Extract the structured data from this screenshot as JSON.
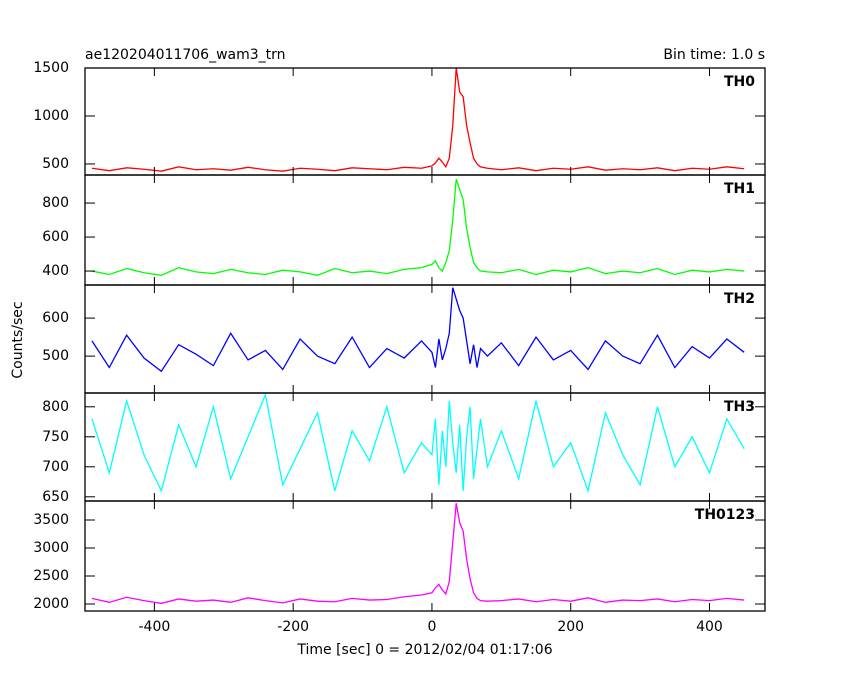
{
  "chart_data": [
    {
      "type": "line",
      "title": "ae120204011706_wam3_trn",
      "subtitle": "Bin time: 1.0 s",
      "x": [
        -490,
        -465,
        -440,
        -415,
        -390,
        -365,
        -340,
        -315,
        -290,
        -265,
        -240,
        -215,
        -190,
        -165,
        -140,
        -115,
        -90,
        -65,
        -40,
        -15,
        0,
        5,
        10,
        15,
        20,
        25,
        30,
        35,
        40,
        45,
        50,
        55,
        60,
        65,
        70,
        80,
        100,
        125,
        150,
        175,
        200,
        225,
        250,
        275,
        300,
        325,
        350,
        375,
        400,
        425,
        450
      ],
      "series": [
        {
          "name": "TH0",
          "color": "#ff0000",
          "values": [
            455,
            430,
            460,
            445,
            425,
            470,
            440,
            450,
            435,
            465,
            440,
            425,
            455,
            445,
            430,
            460,
            450,
            440,
            465,
            455,
            480,
            510,
            560,
            520,
            470,
            560,
            900,
            1500,
            1250,
            1200,
            900,
            720,
            560,
            500,
            470,
            455,
            440,
            460,
            430,
            455,
            445,
            470,
            435,
            450,
            440,
            460,
            430,
            455,
            445,
            470,
            450
          ]
        }
      ],
      "xlim": [
        -500,
        480
      ],
      "xticks": [
        -400,
        -200,
        0,
        200,
        400
      ],
      "ylim": [
        385,
        1500
      ],
      "yticks": [
        500,
        1000,
        1500
      ]
    },
    {
      "type": "line",
      "x": [
        -490,
        -465,
        -440,
        -415,
        -390,
        -365,
        -340,
        -315,
        -290,
        -265,
        -240,
        -215,
        -190,
        -165,
        -140,
        -115,
        -90,
        -65,
        -40,
        -15,
        0,
        5,
        10,
        15,
        20,
        25,
        30,
        35,
        40,
        45,
        50,
        55,
        60,
        65,
        70,
        80,
        100,
        125,
        150,
        175,
        200,
        225,
        250,
        275,
        300,
        325,
        350,
        375,
        400,
        425,
        450
      ],
      "series": [
        {
          "name": "TH1",
          "color": "#00ff00",
          "values": [
            400,
            380,
            415,
            390,
            375,
            420,
            395,
            385,
            410,
            390,
            380,
            405,
            395,
            375,
            415,
            390,
            400,
            385,
            410,
            420,
            440,
            460,
            420,
            400,
            450,
            520,
            700,
            940,
            880,
            820,
            650,
            540,
            450,
            420,
            400,
            395,
            390,
            410,
            380,
            405,
            395,
            420,
            385,
            400,
            390,
            415,
            380,
            405,
            395,
            410,
            400
          ]
        }
      ],
      "xlim": [
        -500,
        480
      ],
      "xticks": [
        -400,
        -200,
        0,
        200,
        400
      ],
      "ylim": [
        318,
        965
      ],
      "yticks": [
        400,
        600,
        800
      ]
    },
    {
      "type": "line",
      "y_label": "Counts/sec",
      "x": [
        -490,
        -465,
        -440,
        -415,
        -390,
        -365,
        -340,
        -315,
        -290,
        -265,
        -240,
        -215,
        -190,
        -165,
        -140,
        -115,
        -90,
        -65,
        -40,
        -15,
        0,
        5,
        10,
        15,
        20,
        25,
        30,
        35,
        40,
        45,
        50,
        55,
        60,
        65,
        70,
        80,
        100,
        125,
        150,
        175,
        200,
        225,
        250,
        275,
        300,
        325,
        350,
        375,
        400,
        425,
        450
      ],
      "series": [
        {
          "name": "TH2",
          "color": "#0000ff",
          "values": [
            540,
            470,
            555,
            495,
            460,
            530,
            505,
            475,
            560,
            490,
            515,
            465,
            545,
            500,
            480,
            550,
            470,
            520,
            495,
            540,
            510,
            470,
            545,
            490,
            520,
            560,
            680,
            650,
            620,
            600,
            540,
            480,
            530,
            470,
            520,
            500,
            535,
            475,
            550,
            490,
            515,
            465,
            540,
            500,
            480,
            555,
            470,
            525,
            495,
            545,
            510
          ]
        }
      ],
      "xlim": [
        -500,
        480
      ],
      "xticks": [
        -400,
        -200,
        0,
        200,
        400
      ],
      "ylim": [
        403,
        687
      ],
      "yticks": [
        500,
        600
      ]
    },
    {
      "type": "line",
      "x": [
        -490,
        -465,
        -440,
        -415,
        -390,
        -365,
        -340,
        -315,
        -290,
        -265,
        -240,
        -215,
        -190,
        -165,
        -140,
        -115,
        -90,
        -65,
        -40,
        -15,
        0,
        5,
        10,
        15,
        20,
        25,
        30,
        35,
        40,
        45,
        50,
        55,
        60,
        65,
        70,
        80,
        100,
        125,
        150,
        175,
        200,
        225,
        250,
        275,
        300,
        325,
        350,
        375,
        400,
        425,
        450
      ],
      "series": [
        {
          "name": "TH3",
          "color": "#00ffff",
          "values": [
            780,
            690,
            810,
            720,
            660,
            770,
            700,
            800,
            680,
            750,
            820,
            670,
            730,
            790,
            660,
            760,
            710,
            800,
            690,
            740,
            720,
            780,
            670,
            760,
            700,
            810,
            740,
            690,
            770,
            660,
            750,
            800,
            680,
            730,
            780,
            700,
            760,
            680,
            810,
            700,
            740,
            660,
            790,
            720,
            670,
            800,
            700,
            750,
            690,
            780,
            730
          ]
        }
      ],
      "xlim": [
        -500,
        480
      ],
      "xticks": [
        -400,
        -200,
        0,
        200,
        400
      ],
      "ylim": [
        643,
        823
      ],
      "yticks": [
        650,
        700,
        750,
        800
      ]
    },
    {
      "type": "line",
      "x_label": "Time [sec] 0 = 2012/02/04 01:17:06",
      "x": [
        -490,
        -465,
        -440,
        -415,
        -390,
        -365,
        -340,
        -315,
        -290,
        -265,
        -240,
        -215,
        -190,
        -165,
        -140,
        -115,
        -90,
        -65,
        -40,
        -15,
        0,
        5,
        10,
        15,
        20,
        25,
        30,
        35,
        40,
        45,
        50,
        55,
        60,
        65,
        70,
        80,
        100,
        125,
        150,
        175,
        200,
        225,
        250,
        275,
        300,
        325,
        350,
        375,
        400,
        425,
        450
      ],
      "series": [
        {
          "name": "TH0123",
          "color": "#ff00ff",
          "values": [
            2100,
            2030,
            2120,
            2060,
            2010,
            2090,
            2050,
            2070,
            2030,
            2110,
            2060,
            2020,
            2090,
            2050,
            2040,
            2100,
            2070,
            2080,
            2130,
            2160,
            2200,
            2290,
            2350,
            2250,
            2180,
            2400,
            3100,
            3800,
            3450,
            3300,
            2800,
            2450,
            2200,
            2100,
            2060,
            2050,
            2060,
            2090,
            2040,
            2080,
            2050,
            2110,
            2030,
            2070,
            2060,
            2090,
            2040,
            2080,
            2060,
            2100,
            2070
          ]
        }
      ],
      "xlim": [
        -500,
        480
      ],
      "xticks": [
        -400,
        -200,
        0,
        200,
        400
      ],
      "ylim": [
        1875,
        3839
      ],
      "yticks": [
        2000,
        2500,
        3000,
        3500
      ]
    }
  ]
}
